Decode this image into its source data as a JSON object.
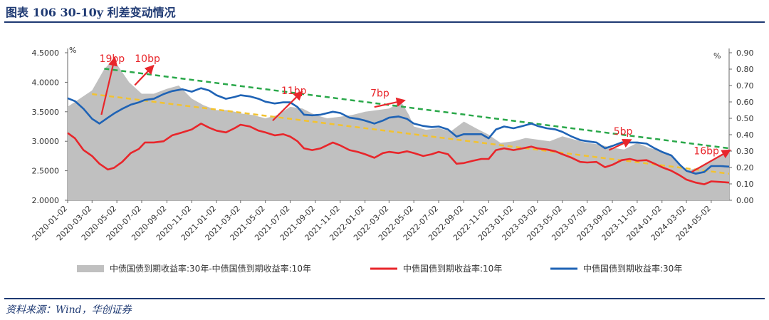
{
  "title": "图表 106    30-10y 利差变动情况",
  "source": "资料来源：Wind，华创证券",
  "colors": {
    "spread_area": "#c0c0c0",
    "y10": "#e8262b",
    "y30": "#1f63b5",
    "trend_green": "#2aa84a",
    "trend_yellow": "#f2c230",
    "annotation": "#e8262b",
    "brand": "#1f3a73"
  },
  "chart_data": {
    "type": "area+line",
    "left_unit": "%",
    "right_unit": "%",
    "left_axis": {
      "min": 2.0,
      "max": 4.5,
      "ticks": [
        "4.5000",
        "4.0000",
        "3.5000",
        "3.0000",
        "2.5000",
        "2.0000"
      ]
    },
    "right_axis": {
      "min": 0.0,
      "max": 0.9,
      "ticks": [
        "0.90",
        "0.80",
        "0.70",
        "0.60",
        "0.50",
        "0.40",
        "0.30",
        "0.20",
        "0.10",
        "0.00"
      ]
    },
    "x_range": [
      "2020-01-02",
      "2024-06-15"
    ],
    "x_ticks": [
      "2020-01-02",
      "2020-03-02",
      "2020-05-02",
      "2020-07-02",
      "2020-09-02",
      "2020-11-02",
      "2021-01-02",
      "2021-03-02",
      "2021-05-02",
      "2021-07-02",
      "2021-09-02",
      "2021-11-02",
      "2022-01-02",
      "2022-03-02",
      "2022-05-02",
      "2022-07-02",
      "2022-09-02",
      "2022-11-02",
      "2023-01-02",
      "2023-03-02",
      "2023-05-02",
      "2023-07-02",
      "2023-09-02",
      "2023-11-02",
      "2024-01-02",
      "2024-03-02",
      "2024-05-02"
    ],
    "series": [
      {
        "name": "中债国债到期收益率:30年-中债国债到期收益率:10年",
        "axis": "right",
        "kind": "area",
        "points": [
          [
            "2020-01-02",
            0.57
          ],
          [
            "2020-02-01",
            0.62
          ],
          [
            "2020-03-02",
            0.67
          ],
          [
            "2020-04-01",
            0.8
          ],
          [
            "2020-04-20",
            0.85
          ],
          [
            "2020-05-02",
            0.83
          ],
          [
            "2020-06-01",
            0.72
          ],
          [
            "2020-07-02",
            0.65
          ],
          [
            "2020-08-01",
            0.65
          ],
          [
            "2020-09-02",
            0.68
          ],
          [
            "2020-10-01",
            0.7
          ],
          [
            "2020-11-02",
            0.62
          ],
          [
            "2020-12-01",
            0.58
          ],
          [
            "2021-01-02",
            0.55
          ],
          [
            "2021-02-01",
            0.55
          ],
          [
            "2021-03-02",
            0.53
          ],
          [
            "2021-04-01",
            0.52
          ],
          [
            "2021-05-02",
            0.5
          ],
          [
            "2021-06-01",
            0.52
          ],
          [
            "2021-07-02",
            0.57
          ],
          [
            "2021-08-01",
            0.56
          ],
          [
            "2021-09-02",
            0.52
          ],
          [
            "2021-10-01",
            0.5
          ],
          [
            "2021-11-02",
            0.51
          ],
          [
            "2021-12-01",
            0.52
          ],
          [
            "2022-01-02",
            0.54
          ],
          [
            "2022-02-01",
            0.55
          ],
          [
            "2022-03-02",
            0.56
          ],
          [
            "2022-04-01",
            0.6
          ],
          [
            "2022-04-20",
            0.52
          ],
          [
            "2022-05-02",
            0.45
          ],
          [
            "2022-06-01",
            0.43
          ],
          [
            "2022-07-02",
            0.44
          ],
          [
            "2022-08-01",
            0.42
          ],
          [
            "2022-09-02",
            0.48
          ],
          [
            "2022-10-01",
            0.44
          ],
          [
            "2022-11-02",
            0.4
          ],
          [
            "2022-12-01",
            0.35
          ],
          [
            "2023-01-02",
            0.36
          ],
          [
            "2023-02-01",
            0.38
          ],
          [
            "2023-03-02",
            0.37
          ],
          [
            "2023-04-01",
            0.36
          ],
          [
            "2023-05-02",
            0.39
          ],
          [
            "2023-06-01",
            0.37
          ],
          [
            "2023-07-02",
            0.35
          ],
          [
            "2023-08-01",
            0.34
          ],
          [
            "2023-09-02",
            0.32
          ],
          [
            "2023-10-01",
            0.31
          ],
          [
            "2023-11-02",
            0.35
          ],
          [
            "2023-12-01",
            0.32
          ],
          [
            "2024-01-02",
            0.3
          ],
          [
            "2024-02-01",
            0.26
          ],
          [
            "2024-03-02",
            0.18
          ],
          [
            "2024-04-01",
            0.2
          ],
          [
            "2024-05-02",
            0.24
          ],
          [
            "2024-06-01",
            0.28
          ],
          [
            "2024-06-15",
            0.3
          ]
        ]
      },
      {
        "name": "中债国债到期收益率:10年",
        "axis": "left",
        "kind": "line",
        "points": [
          [
            "2020-01-02",
            3.14
          ],
          [
            "2020-01-20",
            3.05
          ],
          [
            "2020-02-10",
            2.85
          ],
          [
            "2020-03-02",
            2.75
          ],
          [
            "2020-03-20",
            2.62
          ],
          [
            "2020-04-10",
            2.52
          ],
          [
            "2020-04-25",
            2.55
          ],
          [
            "2020-05-15",
            2.65
          ],
          [
            "2020-06-05",
            2.8
          ],
          [
            "2020-06-25",
            2.87
          ],
          [
            "2020-07-10",
            2.98
          ],
          [
            "2020-08-01",
            2.98
          ],
          [
            "2020-08-25",
            3.0
          ],
          [
            "2020-09-15",
            3.1
          ],
          [
            "2020-10-10",
            3.15
          ],
          [
            "2020-11-02",
            3.2
          ],
          [
            "2020-11-25",
            3.3
          ],
          [
            "2020-12-15",
            3.23
          ],
          [
            "2021-01-02",
            3.18
          ],
          [
            "2021-01-25",
            3.15
          ],
          [
            "2021-02-15",
            3.22
          ],
          [
            "2021-03-02",
            3.28
          ],
          [
            "2021-03-25",
            3.25
          ],
          [
            "2021-04-15",
            3.18
          ],
          [
            "2021-05-02",
            3.15
          ],
          [
            "2021-05-25",
            3.1
          ],
          [
            "2021-06-15",
            3.12
          ],
          [
            "2021-07-02",
            3.08
          ],
          [
            "2021-07-20",
            3.0
          ],
          [
            "2021-08-05",
            2.88
          ],
          [
            "2021-08-25",
            2.85
          ],
          [
            "2021-09-15",
            2.88
          ],
          [
            "2021-10-15",
            2.98
          ],
          [
            "2021-11-02",
            2.93
          ],
          [
            "2021-11-25",
            2.85
          ],
          [
            "2021-12-15",
            2.82
          ],
          [
            "2022-01-02",
            2.78
          ],
          [
            "2022-01-25",
            2.72
          ],
          [
            "2022-02-15",
            2.8
          ],
          [
            "2022-03-02",
            2.82
          ],
          [
            "2022-03-25",
            2.8
          ],
          [
            "2022-04-15",
            2.83
          ],
          [
            "2022-05-02",
            2.8
          ],
          [
            "2022-05-25",
            2.75
          ],
          [
            "2022-06-15",
            2.78
          ],
          [
            "2022-07-02",
            2.82
          ],
          [
            "2022-07-25",
            2.78
          ],
          [
            "2022-08-15",
            2.62
          ],
          [
            "2022-09-02",
            2.63
          ],
          [
            "2022-09-25",
            2.67
          ],
          [
            "2022-10-15",
            2.7
          ],
          [
            "2022-11-02",
            2.7
          ],
          [
            "2022-11-20",
            2.85
          ],
          [
            "2022-12-10",
            2.88
          ],
          [
            "2023-01-02",
            2.85
          ],
          [
            "2023-01-25",
            2.88
          ],
          [
            "2023-02-15",
            2.91
          ],
          [
            "2023-03-02",
            2.88
          ],
          [
            "2023-03-25",
            2.86
          ],
          [
            "2023-04-15",
            2.83
          ],
          [
            "2023-05-02",
            2.78
          ],
          [
            "2023-05-25",
            2.72
          ],
          [
            "2023-06-15",
            2.65
          ],
          [
            "2023-07-02",
            2.64
          ],
          [
            "2023-07-25",
            2.65
          ],
          [
            "2023-08-15",
            2.56
          ],
          [
            "2023-09-02",
            2.6
          ],
          [
            "2023-09-25",
            2.68
          ],
          [
            "2023-10-15",
            2.7
          ],
          [
            "2023-11-02",
            2.67
          ],
          [
            "2023-11-25",
            2.68
          ],
          [
            "2023-12-15",
            2.62
          ],
          [
            "2024-01-02",
            2.56
          ],
          [
            "2024-01-25",
            2.5
          ],
          [
            "2024-02-15",
            2.42
          ],
          [
            "2024-03-02",
            2.35
          ],
          [
            "2024-03-25",
            2.3
          ],
          [
            "2024-04-15",
            2.27
          ],
          [
            "2024-05-02",
            2.32
          ],
          [
            "2024-05-25",
            2.31
          ],
          [
            "2024-06-15",
            2.3
          ]
        ]
      },
      {
        "name": "中债国债到期收益率:30年",
        "axis": "left",
        "kind": "line",
        "points": [
          [
            "2020-01-02",
            3.73
          ],
          [
            "2020-01-20",
            3.68
          ],
          [
            "2020-02-10",
            3.55
          ],
          [
            "2020-03-02",
            3.38
          ],
          [
            "2020-03-20",
            3.3
          ],
          [
            "2020-04-10",
            3.4
          ],
          [
            "2020-04-25",
            3.47
          ],
          [
            "2020-05-15",
            3.55
          ],
          [
            "2020-06-05",
            3.62
          ],
          [
            "2020-06-25",
            3.66
          ],
          [
            "2020-07-10",
            3.7
          ],
          [
            "2020-08-01",
            3.72
          ],
          [
            "2020-08-25",
            3.8
          ],
          [
            "2020-09-15",
            3.85
          ],
          [
            "2020-10-10",
            3.88
          ],
          [
            "2020-11-02",
            3.84
          ],
          [
            "2020-11-25",
            3.9
          ],
          [
            "2020-12-15",
            3.86
          ],
          [
            "2021-01-02",
            3.78
          ],
          [
            "2021-01-25",
            3.72
          ],
          [
            "2021-02-15",
            3.75
          ],
          [
            "2021-03-02",
            3.78
          ],
          [
            "2021-03-25",
            3.76
          ],
          [
            "2021-04-15",
            3.72
          ],
          [
            "2021-05-02",
            3.67
          ],
          [
            "2021-05-25",
            3.64
          ],
          [
            "2021-06-15",
            3.66
          ],
          [
            "2021-07-02",
            3.66
          ],
          [
            "2021-07-20",
            3.58
          ],
          [
            "2021-08-05",
            3.45
          ],
          [
            "2021-08-25",
            3.44
          ],
          [
            "2021-09-15",
            3.45
          ],
          [
            "2021-10-15",
            3.5
          ],
          [
            "2021-11-02",
            3.48
          ],
          [
            "2021-11-25",
            3.4
          ],
          [
            "2021-12-15",
            3.38
          ],
          [
            "2022-01-02",
            3.35
          ],
          [
            "2022-01-25",
            3.3
          ],
          [
            "2022-02-15",
            3.35
          ],
          [
            "2022-03-02",
            3.4
          ],
          [
            "2022-03-25",
            3.42
          ],
          [
            "2022-04-15",
            3.38
          ],
          [
            "2022-05-02",
            3.3
          ],
          [
            "2022-05-25",
            3.26
          ],
          [
            "2022-06-15",
            3.24
          ],
          [
            "2022-07-02",
            3.25
          ],
          [
            "2022-07-25",
            3.2
          ],
          [
            "2022-08-15",
            3.08
          ],
          [
            "2022-09-02",
            3.12
          ],
          [
            "2022-09-25",
            3.12
          ],
          [
            "2022-10-15",
            3.12
          ],
          [
            "2022-11-02",
            3.05
          ],
          [
            "2022-11-20",
            3.2
          ],
          [
            "2022-12-10",
            3.25
          ],
          [
            "2023-01-02",
            3.22
          ],
          [
            "2023-01-25",
            3.26
          ],
          [
            "2023-02-15",
            3.3
          ],
          [
            "2023-03-02",
            3.26
          ],
          [
            "2023-03-25",
            3.22
          ],
          [
            "2023-04-15",
            3.2
          ],
          [
            "2023-05-02",
            3.16
          ],
          [
            "2023-05-25",
            3.08
          ],
          [
            "2023-06-15",
            3.02
          ],
          [
            "2023-07-02",
            3.0
          ],
          [
            "2023-07-25",
            2.98
          ],
          [
            "2023-08-15",
            2.88
          ],
          [
            "2023-09-02",
            2.92
          ],
          [
            "2023-09-25",
            2.98
          ],
          [
            "2023-10-15",
            2.98
          ],
          [
            "2023-11-02",
            2.98
          ],
          [
            "2023-11-25",
            2.96
          ],
          [
            "2023-12-15",
            2.88
          ],
          [
            "2024-01-02",
            2.82
          ],
          [
            "2024-01-25",
            2.76
          ],
          [
            "2024-02-15",
            2.6
          ],
          [
            "2024-03-02",
            2.5
          ],
          [
            "2024-03-25",
            2.45
          ],
          [
            "2024-04-15",
            2.48
          ],
          [
            "2024-05-02",
            2.58
          ],
          [
            "2024-05-25",
            2.58
          ],
          [
            "2024-06-15",
            2.57
          ]
        ]
      }
    ],
    "trend_lines": [
      {
        "name": "upper-trend",
        "color": "green",
        "axis": "left",
        "from": [
          "2020-04-01",
          4.23
        ],
        "to": [
          "2024-06-15",
          2.88
        ]
      },
      {
        "name": "lower-trend",
        "color": "yellow",
        "axis": "left",
        "from": [
          "2020-03-02",
          3.8
        ],
        "to": [
          "2024-06-15",
          2.45
        ]
      }
    ],
    "annotations": [
      {
        "label": "19bp",
        "arrow_from": [
          "2020-03-25",
          3.45
        ],
        "arrow_to": [
          "2020-04-25",
          4.36
        ],
        "text_at": [
          "2020-03-20",
          4.34
        ]
      },
      {
        "label": "10bp",
        "arrow_from": [
          "2020-06-15",
          3.95
        ],
        "arrow_to": [
          "2020-07-25",
          4.24
        ],
        "text_at": [
          "2020-06-15",
          4.34
        ]
      },
      {
        "label": "11bp",
        "arrow_from": [
          "2021-05-20",
          3.35
        ],
        "arrow_to": [
          "2021-07-25",
          3.8
        ],
        "text_at": [
          "2021-06-10",
          3.8
        ]
      },
      {
        "label": "7bp",
        "arrow_from": [
          "2022-01-25",
          3.58
        ],
        "arrow_to": [
          "2022-04-01",
          3.68
        ],
        "text_at": [
          "2022-01-15",
          3.76
        ]
      },
      {
        "label": "5bp",
        "arrow_from": [
          "2023-08-25",
          2.85
        ],
        "arrow_to": [
          "2023-10-10",
          3.0
        ],
        "text_at": [
          "2023-09-05",
          3.11
        ]
      },
      {
        "label": "16bp",
        "arrow_from": [
          "2024-03-15",
          2.48
        ],
        "arrow_to": [
          "2024-06-10",
          2.82
        ],
        "text_at": [
          "2024-03-20",
          2.78
        ]
      }
    ],
    "legend": [
      {
        "label": "中债国债到期收益率:30年-中债国债到期收益率:10年",
        "kind": "area",
        "color_key": "spread_area"
      },
      {
        "label": "中债国债到期收益率:10年",
        "kind": "line",
        "color_key": "y10"
      },
      {
        "label": "中债国债到期收益率:30年",
        "kind": "line",
        "color_key": "y30"
      }
    ]
  }
}
